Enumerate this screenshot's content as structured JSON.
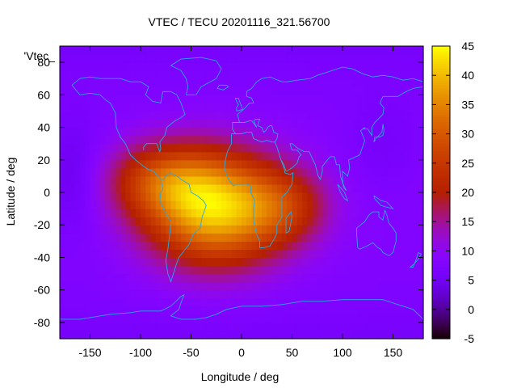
{
  "chart_data": {
    "type": "heatmap",
    "title": "VTEC / TECU 20201116_321.56700",
    "xlabel": "Longitude / deg",
    "ylabel": "Latitude / deg",
    "key_label": "'Vtec_",
    "xlim": [
      -180,
      180
    ],
    "ylim": [
      -90,
      90
    ],
    "x_ticks": [
      -150,
      -100,
      -50,
      0,
      50,
      100,
      150
    ],
    "y_ticks": [
      -80,
      -60,
      -40,
      -20,
      0,
      20,
      40,
      60,
      80
    ],
    "colorbar": {
      "range": [
        -5,
        45
      ],
      "ticks": [
        -5,
        0,
        5,
        10,
        15,
        20,
        25,
        30,
        35,
        40,
        45
      ],
      "palette": "black-purple-red-orange-yellow"
    },
    "field_model": {
      "background_tecu": 8,
      "peaks": [
        {
          "lon": -25,
          "lat": -10,
          "amplitude_tecu": 33,
          "sigma_lon_deg": 48,
          "sigma_lat_deg": 24
        },
        {
          "lon": -80,
          "lat": 8,
          "amplitude_tecu": 14,
          "sigma_lon_deg": 38,
          "sigma_lat_deg": 16
        },
        {
          "lon": 45,
          "lat": -8,
          "amplitude_tecu": 10,
          "sigma_lon_deg": 30,
          "sigma_lat_deg": 16
        }
      ],
      "troughs": [
        {
          "lon": -165,
          "lat": 10,
          "amplitude_tecu": -4,
          "sigma_lon_deg": 20,
          "sigma_lat_deg": 25
        },
        {
          "lon": 140,
          "lat": 30,
          "amplitude_tecu": -2,
          "sigma_lon_deg": 25,
          "sigma_lat_deg": 20
        }
      ]
    },
    "overlay": "coastlines"
  },
  "coastlines": [
    [
      [
        -168,
        66
      ],
      [
        -160,
        60
      ],
      [
        -150,
        61
      ],
      [
        -140,
        60
      ],
      [
        -135,
        57
      ],
      [
        -130,
        55
      ],
      [
        -125,
        49
      ],
      [
        -124,
        40
      ],
      [
        -120,
        34
      ],
      [
        -115,
        30
      ],
      [
        -110,
        23
      ],
      [
        -105,
        20
      ],
      [
        -97,
        16
      ],
      [
        -92,
        14
      ],
      [
        -87,
        13
      ],
      [
        -83,
        10
      ],
      [
        -80,
        8
      ],
      [
        -77,
        8
      ],
      [
        -75,
        10
      ],
      [
        -71,
        12
      ],
      [
        -64,
        10
      ],
      [
        -60,
        8
      ],
      [
        -52,
        5
      ],
      [
        -50,
        0
      ],
      [
        -44,
        -2
      ],
      [
        -38,
        -5
      ],
      [
        -35,
        -8
      ],
      [
        -39,
        -15
      ],
      [
        -41,
        -22
      ],
      [
        -48,
        -26
      ],
      [
        -52,
        -32
      ],
      [
        -57,
        -36
      ],
      [
        -62,
        -40
      ],
      [
        -65,
        -45
      ],
      [
        -68,
        -51
      ],
      [
        -70,
        -55
      ],
      [
        -73,
        -50
      ],
      [
        -75,
        -42
      ],
      [
        -73,
        -35
      ],
      [
        -71,
        -25
      ],
      [
        -70,
        -18
      ],
      [
        -76,
        -12
      ],
      [
        -81,
        -5
      ],
      [
        -80,
        0
      ],
      [
        -78,
        2
      ],
      [
        -80,
        8
      ]
    ],
    [
      [
        -97,
        26
      ],
      [
        -97,
        28
      ],
      [
        -94,
        30
      ],
      [
        -89,
        30
      ],
      [
        -84,
        30
      ],
      [
        -81,
        25
      ],
      [
        -80,
        27
      ],
      [
        -81,
        31
      ],
      [
        -76,
        35
      ],
      [
        -74,
        40
      ],
      [
        -70,
        42
      ],
      [
        -66,
        44
      ],
      [
        -60,
        46
      ],
      [
        -56,
        48
      ],
      [
        -60,
        55
      ],
      [
        -64,
        60
      ],
      [
        -70,
        62
      ],
      [
        -78,
        62
      ],
      [
        -80,
        55
      ],
      [
        -88,
        56
      ],
      [
        -95,
        60
      ],
      [
        -92,
        65
      ],
      [
        -100,
        68
      ],
      [
        -110,
        68
      ],
      [
        -120,
        70
      ],
      [
        -130,
        70
      ],
      [
        -140,
        70
      ],
      [
        -150,
        71
      ],
      [
        -160,
        70
      ],
      [
        -168,
        66
      ]
    ],
    [
      [
        -55,
        60
      ],
      [
        -45,
        60
      ],
      [
        -40,
        65
      ],
      [
        -25,
        70
      ],
      [
        -20,
        76
      ],
      [
        -25,
        81
      ],
      [
        -40,
        83
      ],
      [
        -60,
        82
      ],
      [
        -70,
        78
      ],
      [
        -60,
        75
      ],
      [
        -55,
        70
      ],
      [
        -53,
        65
      ],
      [
        -55,
        60
      ]
    ],
    [
      [
        -10,
        36
      ],
      [
        -6,
        36
      ],
      [
        -9,
        39
      ],
      [
        -9,
        43
      ],
      [
        -2,
        43
      ],
      [
        -4,
        48
      ],
      [
        2,
        51
      ],
      [
        5,
        53
      ],
      [
        8,
        55
      ],
      [
        12,
        55
      ],
      [
        10,
        58
      ],
      [
        5,
        59
      ],
      [
        5,
        62
      ],
      [
        10,
        64
      ],
      [
        15,
        68
      ],
      [
        20,
        70
      ],
      [
        28,
        71
      ],
      [
        40,
        68
      ],
      [
        45,
        68
      ],
      [
        55,
        69
      ],
      [
        68,
        70
      ],
      [
        75,
        72
      ],
      [
        85,
        74
      ],
      [
        100,
        77
      ],
      [
        110,
        76
      ],
      [
        120,
        73
      ],
      [
        130,
        71
      ],
      [
        140,
        72
      ],
      [
        150,
        71
      ],
      [
        160,
        69
      ],
      [
        170,
        70
      ],
      [
        180,
        68
      ]
    ],
    [
      [
        -6,
        36
      ],
      [
        -5,
        36
      ],
      [
        0,
        36
      ],
      [
        5,
        37
      ],
      [
        10,
        37
      ],
      [
        12,
        33
      ],
      [
        20,
        31
      ],
      [
        25,
        32
      ],
      [
        30,
        31
      ],
      [
        33,
        31
      ],
      [
        35,
        28
      ],
      [
        37,
        24
      ],
      [
        39,
        20
      ],
      [
        42,
        15
      ],
      [
        43,
        12
      ],
      [
        48,
        11
      ],
      [
        51,
        12
      ],
      [
        50,
        5
      ],
      [
        45,
        0
      ],
      [
        40,
        -3
      ],
      [
        40,
        -10
      ],
      [
        40,
        -15
      ],
      [
        35,
        -20
      ],
      [
        35,
        -25
      ],
      [
        32,
        -29
      ],
      [
        28,
        -33
      ],
      [
        22,
        -34
      ],
      [
        18,
        -34
      ],
      [
        18,
        -30
      ],
      [
        15,
        -26
      ],
      [
        12,
        -18
      ],
      [
        12,
        -10
      ],
      [
        13,
        -5
      ],
      [
        9,
        0
      ],
      [
        9,
        4
      ],
      [
        5,
        5
      ],
      [
        0,
        5
      ],
      [
        -5,
        5
      ],
      [
        -8,
        4
      ],
      [
        -12,
        7
      ],
      [
        -15,
        11
      ],
      [
        -17,
        15
      ],
      [
        -16,
        20
      ],
      [
        -14,
        25
      ],
      [
        -10,
        30
      ],
      [
        -10,
        36
      ]
    ],
    [
      [
        33,
        31
      ],
      [
        35,
        33
      ],
      [
        36,
        36
      ],
      [
        32,
        37
      ],
      [
        30,
        41
      ],
      [
        28,
        41
      ],
      [
        26,
        40
      ],
      [
        24,
        38
      ],
      [
        22,
        37
      ],
      [
        20,
        40
      ],
      [
        16,
        41
      ],
      [
        18,
        45
      ],
      [
        14,
        45
      ],
      [
        12,
        44
      ],
      [
        15,
        40
      ],
      [
        10,
        44
      ],
      [
        8,
        44
      ],
      [
        3,
        43
      ],
      [
        -2,
        43
      ]
    ],
    [
      [
        39,
        20
      ],
      [
        42,
        17
      ],
      [
        44,
        13
      ],
      [
        50,
        15
      ],
      [
        55,
        18
      ],
      [
        57,
        22
      ],
      [
        59,
        23
      ],
      [
        55,
        26
      ],
      [
        50,
        26
      ],
      [
        48,
        30
      ],
      [
        50,
        30
      ],
      [
        56,
        27
      ],
      [
        62,
        25
      ],
      [
        67,
        25
      ],
      [
        70,
        21
      ],
      [
        73,
        17
      ],
      [
        76,
        10
      ],
      [
        78,
        8
      ],
      [
        80,
        13
      ],
      [
        80,
        16
      ],
      [
        85,
        20
      ],
      [
        88,
        22
      ],
      [
        92,
        22
      ],
      [
        94,
        17
      ],
      [
        97,
        17
      ],
      [
        98,
        10
      ],
      [
        100,
        6
      ],
      [
        103,
        2
      ],
      [
        104,
        1
      ],
      [
        101,
        3
      ],
      [
        100,
        8
      ],
      [
        100,
        13
      ],
      [
        105,
        10
      ],
      [
        107,
        15
      ],
      [
        106,
        20
      ],
      [
        110,
        21
      ],
      [
        117,
        23
      ],
      [
        121,
        30
      ],
      [
        122,
        32
      ],
      [
        120,
        35
      ],
      [
        118,
        38
      ],
      [
        122,
        40
      ],
      [
        121,
        39
      ],
      [
        125,
        39
      ],
      [
        129,
        35
      ],
      [
        129,
        40
      ],
      [
        132,
        43
      ],
      [
        140,
        48
      ],
      [
        141,
        52
      ],
      [
        137,
        55
      ],
      [
        140,
        59
      ],
      [
        150,
        59
      ],
      [
        155,
        59
      ],
      [
        160,
        61
      ],
      [
        163,
        62
      ],
      [
        170,
        64
      ],
      [
        180,
        65
      ]
    ],
    [
      [
        115,
        -34
      ],
      [
        114,
        -26
      ],
      [
        114,
        -22
      ],
      [
        122,
        -18
      ],
      [
        126,
        -14
      ],
      [
        130,
        -12
      ],
      [
        136,
        -12
      ],
      [
        136,
        -15
      ],
      [
        140,
        -17
      ],
      [
        142,
        -11
      ],
      [
        144,
        -14
      ],
      [
        146,
        -19
      ],
      [
        150,
        -22
      ],
      [
        153,
        -25
      ],
      [
        153,
        -30
      ],
      [
        150,
        -37
      ],
      [
        146,
        -39
      ],
      [
        140,
        -37
      ],
      [
        138,
        -35
      ],
      [
        135,
        -34
      ],
      [
        130,
        -31
      ],
      [
        124,
        -33
      ],
      [
        117,
        -35
      ],
      [
        115,
        -34
      ]
    ],
    [
      [
        -180,
        -78
      ],
      [
        -160,
        -78
      ],
      [
        -150,
        -77
      ],
      [
        -130,
        -75
      ],
      [
        -110,
        -74
      ],
      [
        -100,
        -73
      ],
      [
        -90,
        -73
      ],
      [
        -80,
        -73
      ],
      [
        -70,
        -70
      ],
      [
        -60,
        -64
      ],
      [
        -57,
        -63
      ],
      [
        -60,
        -68
      ],
      [
        -62,
        -72
      ],
      [
        -70,
        -76
      ],
      [
        -60,
        -78
      ],
      [
        -45,
        -78
      ],
      [
        -35,
        -77
      ],
      [
        -25,
        -75
      ],
      [
        -15,
        -72
      ],
      [
        0,
        -70
      ],
      [
        20,
        -70
      ],
      [
        40,
        -69
      ],
      [
        60,
        -67
      ],
      [
        80,
        -67
      ],
      [
        100,
        -66
      ],
      [
        120,
        -66
      ],
      [
        140,
        -66
      ],
      [
        160,
        -70
      ],
      [
        170,
        -72
      ],
      [
        180,
        -78
      ]
    ],
    [
      [
        140,
        42
      ],
      [
        141,
        38
      ],
      [
        140,
        35
      ],
      [
        136,
        34
      ],
      [
        132,
        34
      ],
      [
        131,
        31
      ],
      [
        133,
        33
      ],
      [
        136,
        35
      ],
      [
        139,
        37
      ],
      [
        140,
        42
      ]
    ],
    [
      [
        95,
        5
      ],
      [
        98,
        3
      ],
      [
        102,
        0
      ],
      [
        105,
        -5
      ],
      [
        102,
        -4
      ],
      [
        98,
        0
      ],
      [
        95,
        5
      ]
    ],
    [
      [
        131,
        -2
      ],
      [
        138,
        -5
      ],
      [
        144,
        -6
      ],
      [
        150,
        -10
      ],
      [
        143,
        -9
      ],
      [
        138,
        -8
      ],
      [
        132,
        -4
      ],
      [
        131,
        -2
      ]
    ],
    [
      [
        -5,
        50
      ],
      [
        -5,
        52
      ],
      [
        -3,
        54
      ],
      [
        -5,
        56
      ],
      [
        -6,
        58
      ],
      [
        -3,
        58
      ],
      [
        -2,
        56
      ],
      [
        0,
        53
      ],
      [
        1,
        51
      ],
      [
        -5,
        50
      ]
    ],
    [
      [
        -24,
        64
      ],
      [
        -22,
        66
      ],
      [
        -15,
        66
      ],
      [
        -13,
        65
      ],
      [
        -18,
        63
      ],
      [
        -24,
        64
      ]
    ],
    [
      [
        44,
        -25
      ],
      [
        47,
        -24
      ],
      [
        50,
        -15
      ],
      [
        49,
        -12
      ],
      [
        44,
        -16
      ],
      [
        44,
        -25
      ]
    ],
    [
      [
        173,
        -41
      ],
      [
        175,
        -37
      ],
      [
        178,
        -38
      ],
      [
        175,
        -41
      ],
      [
        171,
        -44
      ],
      [
        167,
        -46
      ],
      [
        170,
        -46
      ],
      [
        173,
        -41
      ]
    ]
  ]
}
